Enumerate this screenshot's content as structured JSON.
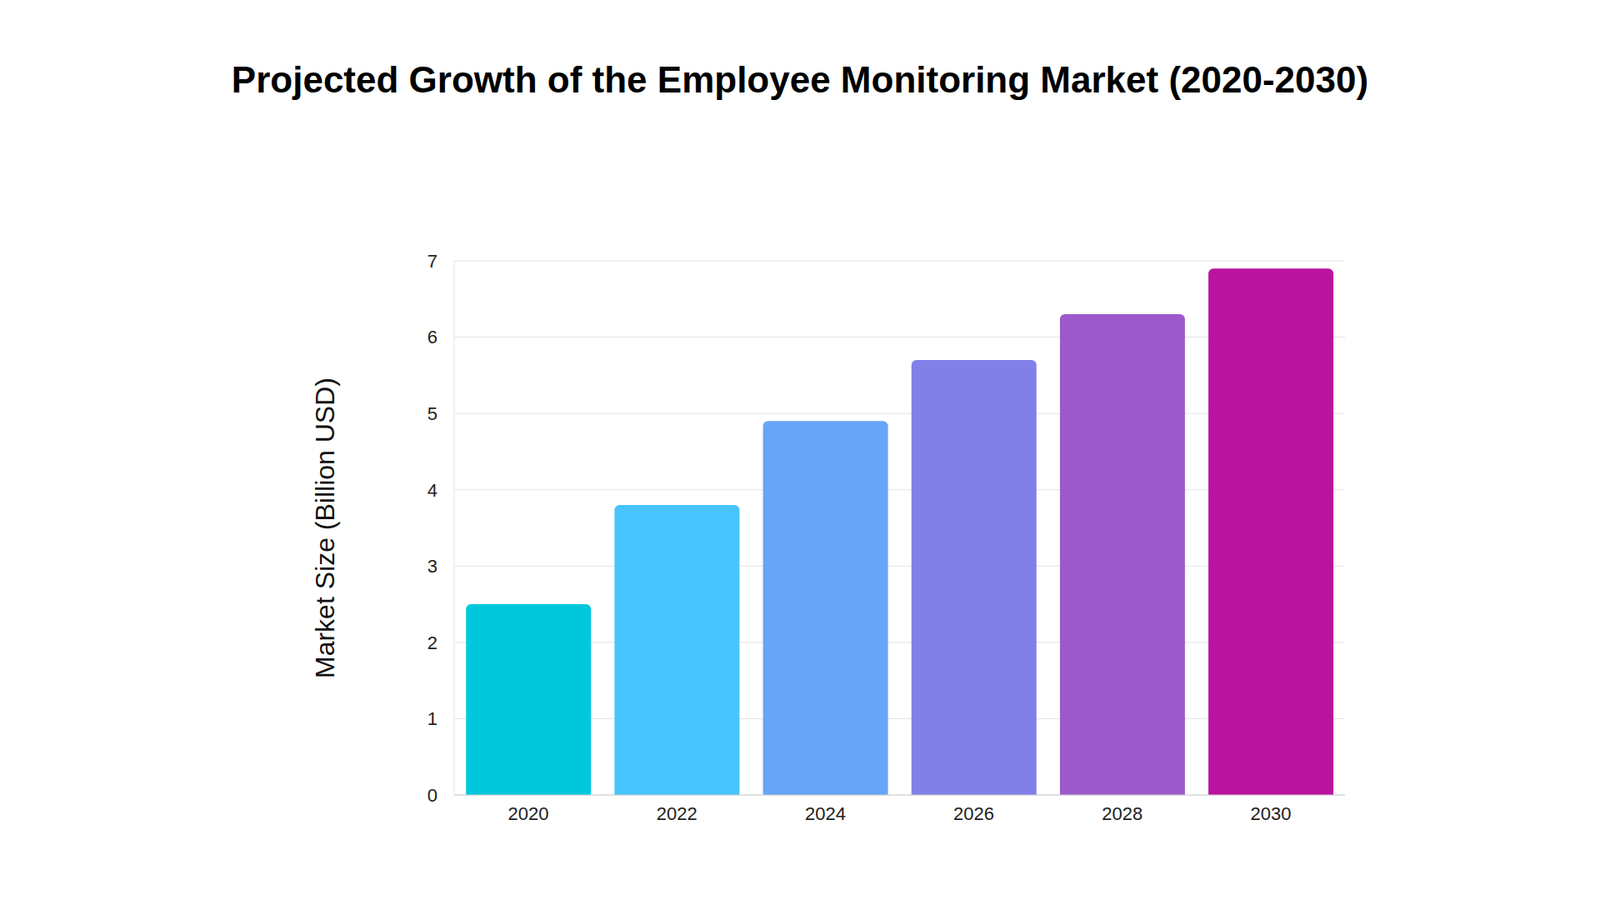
{
  "chart_data": {
    "type": "bar",
    "title": "Projected Growth of the Employee Monitoring Market (2020-2030)",
    "y_label": "Market Size (Billion USD)",
    "categories": [
      "2020",
      "2022",
      "2024",
      "2026",
      "2028",
      "2030"
    ],
    "values": [
      2.5,
      3.8,
      4.9,
      5.7,
      6.3,
      6.9
    ],
    "colors": [
      "#00c8dc",
      "#48c4fc",
      "#66a5f8",
      "#8080e8",
      "#9b59cc",
      "#ba139f"
    ],
    "ylim": [
      0,
      7
    ],
    "yticks": [
      0,
      1,
      2,
      3,
      4,
      5,
      6,
      7
    ],
    "grid": true
  }
}
